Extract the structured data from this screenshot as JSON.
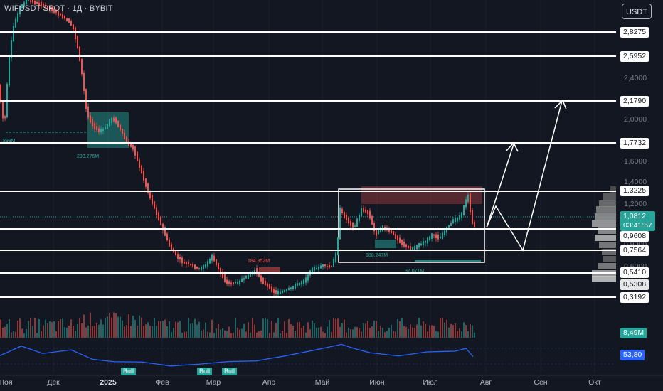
{
  "header": {
    "symbol_title": "WIFUSDT SPOT · 1Д · BYBIT",
    "currency_button": "USDT"
  },
  "price_axis": {
    "level_labels": [
      "2,8275",
      "2,5952",
      "2,1790",
      "1,7732",
      "1,3225",
      "0,9608",
      "0,7564",
      "0,5410",
      "0,5308",
      "0,3192"
    ],
    "tick_labels": [
      "2,4000",
      "2,0000",
      "1,6000",
      "1,4000",
      "1,2000",
      "0,9000",
      "0,6000"
    ],
    "current_price": "1,0812",
    "countdown": "03:41:57",
    "volume_value": "8,49M",
    "rsi_value": "53,80"
  },
  "time_axis": {
    "labels": [
      "Ноя",
      "Дек",
      "2025",
      "Фев",
      "Мар",
      "Апр",
      "Май",
      "Июн",
      "Июл",
      "Авг",
      "Сен",
      "Окт"
    ]
  },
  "annotations": {
    "volume_labels": [
      "293.276M",
      "184.352M",
      "188.247M",
      "37.071M",
      ".893M",
      "Bull"
    ],
    "rsi_badges": [
      "Bull",
      "Bull",
      "Bull"
    ]
  },
  "colors": {
    "background": "#131722",
    "up_candle": "#26a69a",
    "down_candle": "#ef5350",
    "level_line": "#ffffff",
    "rsi_line": "#2962ff",
    "current_price": "#26a69a"
  }
}
